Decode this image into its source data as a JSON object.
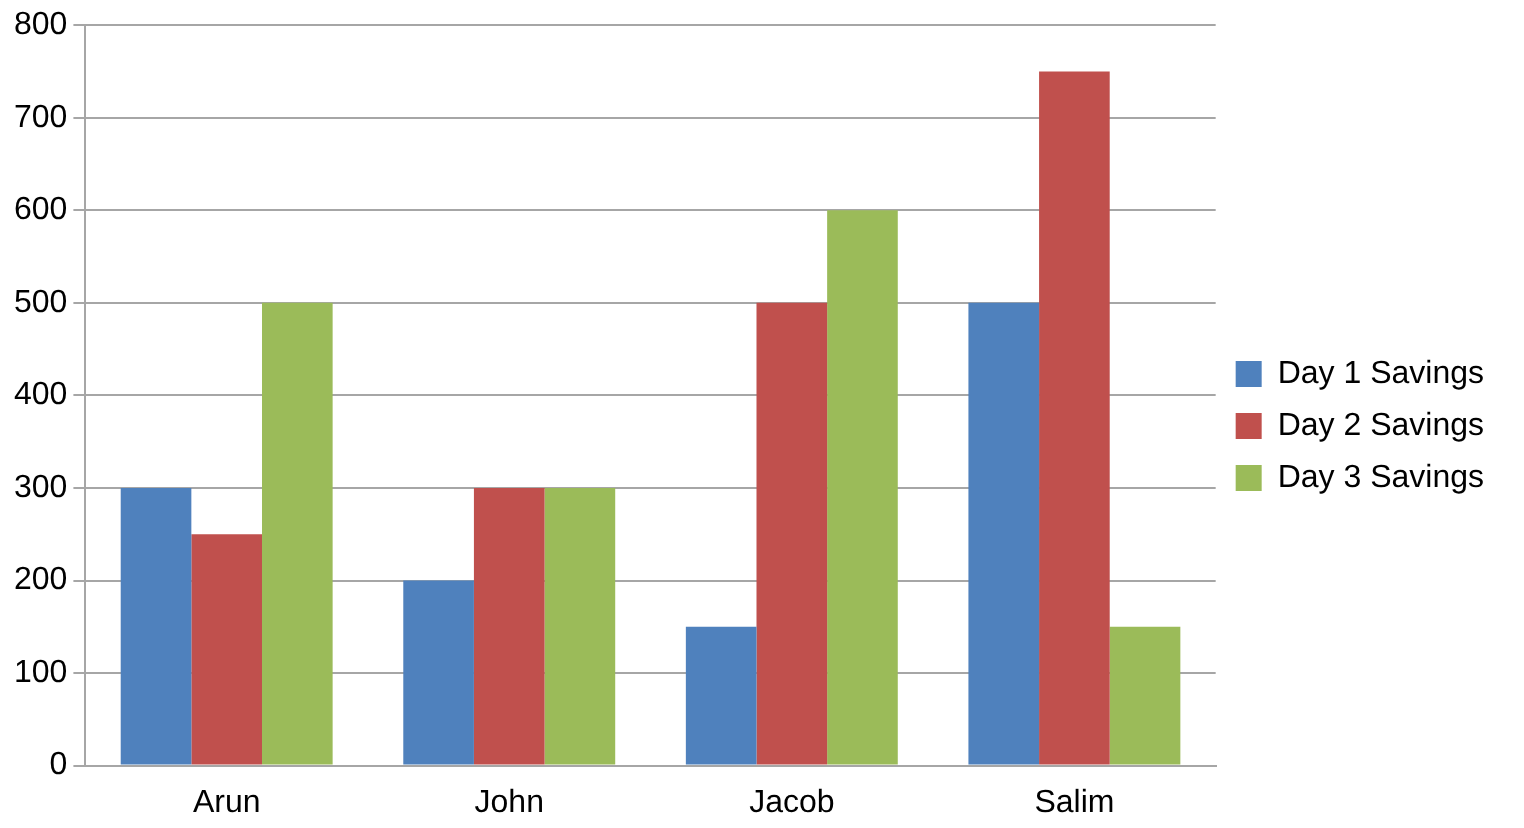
{
  "chart_data": {
    "type": "bar",
    "categories": [
      "Arun",
      "John",
      "Jacob",
      "Salim"
    ],
    "series": [
      {
        "name": "Day 1 Savings",
        "color": "#4f81bd",
        "values": [
          300,
          200,
          150,
          500
        ]
      },
      {
        "name": "Day 2 Savings",
        "color": "#c0504d",
        "values": [
          250,
          300,
          500,
          750
        ]
      },
      {
        "name": "Day 3 Savings",
        "color": "#9bbb59",
        "values": [
          500,
          300,
          600,
          150
        ]
      }
    ],
    "ylim": [
      0,
      800
    ],
    "yticks": [
      0,
      100,
      200,
      300,
      400,
      500,
      600,
      700,
      800
    ],
    "grid": "y",
    "legend": "right"
  }
}
